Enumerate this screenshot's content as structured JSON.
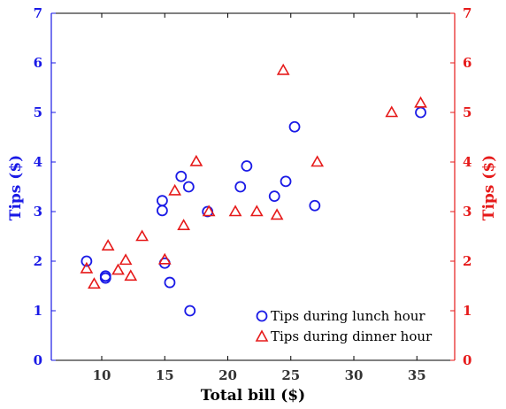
{
  "chart_data": {
    "type": "scatter",
    "xlabel": "Total bill ($)",
    "ylabel_left": "Tips ($)",
    "ylabel_right": "Tips ($)",
    "xlim": [
      6,
      38
    ],
    "ylim": [
      0,
      7
    ],
    "xticks": [
      10,
      15,
      20,
      25,
      30,
      35
    ],
    "yticks": [
      0,
      1,
      2,
      3,
      4,
      5,
      6,
      7
    ],
    "legend_position": "bottom-right",
    "grid": false,
    "colors": {
      "left_axis": "#1a1ae6",
      "right_axis": "#e61a1a",
      "lunch": "#1a1ae6",
      "dinner": "#e61a1a"
    },
    "series": [
      {
        "name": "Tips during lunch hour",
        "marker": "circle",
        "axis": "left",
        "points": [
          [
            8.8,
            2.0
          ],
          [
            10.3,
            1.7
          ],
          [
            10.3,
            1.66
          ],
          [
            14.8,
            3.22
          ],
          [
            14.8,
            3.02
          ],
          [
            15.0,
            1.96
          ],
          [
            15.4,
            1.57
          ],
          [
            16.3,
            3.71
          ],
          [
            16.9,
            3.5
          ],
          [
            17.0,
            1.0
          ],
          [
            18.4,
            3.0
          ],
          [
            21.0,
            3.5
          ],
          [
            21.5,
            3.92
          ],
          [
            23.7,
            3.31
          ],
          [
            24.6,
            3.61
          ],
          [
            25.3,
            4.71
          ],
          [
            26.9,
            3.12
          ],
          [
            35.3,
            5.0
          ]
        ]
      },
      {
        "name": "Tips during dinner hour",
        "marker": "triangle",
        "axis": "right",
        "points": [
          [
            8.8,
            1.85
          ],
          [
            9.4,
            1.54
          ],
          [
            10.5,
            2.31
          ],
          [
            11.3,
            1.82
          ],
          [
            11.9,
            2.02
          ],
          [
            12.3,
            1.7
          ],
          [
            13.2,
            2.5
          ],
          [
            15.0,
            2.03
          ],
          [
            15.8,
            3.42
          ],
          [
            16.5,
            2.72
          ],
          [
            17.5,
            4.01
          ],
          [
            18.5,
            3.0
          ],
          [
            20.6,
            3.0
          ],
          [
            22.3,
            3.0
          ],
          [
            23.9,
            2.93
          ],
          [
            24.4,
            5.85
          ],
          [
            27.1,
            4.0
          ],
          [
            33.0,
            5.0
          ],
          [
            35.3,
            5.19
          ]
        ]
      }
    ]
  }
}
